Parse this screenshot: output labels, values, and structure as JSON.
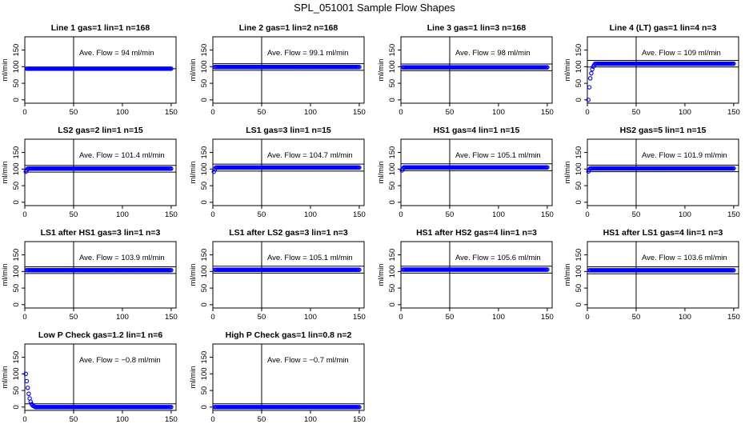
{
  "title": "SPL_051001  Sample Flow Shapes",
  "colors": {
    "points": "#0000ff",
    "axis": "#000000"
  },
  "chart_data": [
    {
      "type": "scatter",
      "title": "Line 1 gas=1 lin=1 n=168",
      "annotation": "Ave. Flow =  94  ml/min",
      "ylabel": "ml/min",
      "xlim": [
        0,
        155
      ],
      "ylim": [
        -10,
        190
      ],
      "xticks": [
        0,
        50,
        100,
        150
      ],
      "yticks": [
        0,
        50,
        100,
        150
      ],
      "vline": 50,
      "hlines": [
        94
      ],
      "ramp": [],
      "plateau": 94,
      "plateau_start": 2,
      "ramp_end": 2
    },
    {
      "type": "scatter",
      "title": "Line 2 gas=1 lin=2 n=168",
      "annotation": "Ave. Flow =  99.1  ml/min",
      "ylabel": "ml/min",
      "xlim": [
        0,
        155
      ],
      "ylim": [
        -10,
        190
      ],
      "xticks": [
        0,
        50,
        100,
        150
      ],
      "yticks": [
        0,
        50,
        100,
        150
      ],
      "vline": 50,
      "hlines": [
        89,
        109
      ],
      "ramp": [],
      "plateau": 99.1,
      "plateau_start": 2,
      "ramp_end": 2
    },
    {
      "type": "scatter",
      "title": "Line 3 gas=1 lin=3 n=168",
      "annotation": "Ave. Flow =  98  ml/min",
      "ylabel": "ml/min",
      "xlim": [
        0,
        155
      ],
      "ylim": [
        -10,
        190
      ],
      "xticks": [
        0,
        50,
        100,
        150
      ],
      "yticks": [
        0,
        50,
        100,
        150
      ],
      "vline": 50,
      "hlines": [
        88,
        108
      ],
      "ramp": [],
      "plateau": 98,
      "plateau_start": 2,
      "ramp_end": 2
    },
    {
      "type": "scatter",
      "title": "Line 4 (LT) gas=1 lin=4 n=3",
      "annotation": "Ave. Flow =  109  ml/min",
      "ylabel": "ml/min",
      "xlim": [
        0,
        155
      ],
      "ylim": [
        -10,
        190
      ],
      "xticks": [
        0,
        50,
        100,
        150
      ],
      "yticks": [
        0,
        50,
        100,
        150
      ],
      "vline": 50,
      "hlines": [
        99,
        119
      ],
      "ramp": [
        [
          1,
          0
        ],
        [
          2,
          38
        ],
        [
          3,
          65
        ],
        [
          4,
          80
        ],
        [
          5,
          92
        ],
        [
          6,
          100
        ],
        [
          7,
          105
        ]
      ],
      "plateau": 109,
      "plateau_start": 8,
      "ramp_end": 8
    },
    {
      "type": "scatter",
      "title": "LS2 gas=2 lin=1 n=15",
      "annotation": "Ave. Flow =  101.4  ml/min",
      "ylabel": "ml/min",
      "xlim": [
        0,
        155
      ],
      "ylim": [
        -10,
        190
      ],
      "xticks": [
        0,
        50,
        100,
        150
      ],
      "yticks": [
        0,
        50,
        100,
        150
      ],
      "vline": 50,
      "hlines": [
        91,
        111
      ],
      "ramp": [
        [
          1,
          92
        ],
        [
          2,
          97
        ]
      ],
      "plateau": 101.4,
      "plateau_start": 3,
      "ramp_end": 3
    },
    {
      "type": "scatter",
      "title": "LS1 gas=3 lin=1 n=15",
      "annotation": "Ave. Flow =  104.7  ml/min",
      "ylabel": "ml/min",
      "xlim": [
        0,
        155
      ],
      "ylim": [
        -10,
        190
      ],
      "xticks": [
        0,
        50,
        100,
        150
      ],
      "yticks": [
        0,
        50,
        100,
        150
      ],
      "vline": 50,
      "hlines": [
        94,
        115
      ],
      "ramp": [
        [
          1,
          92
        ],
        [
          2,
          99
        ]
      ],
      "plateau": 104.7,
      "plateau_start": 3,
      "ramp_end": 3
    },
    {
      "type": "scatter",
      "title": "HS1 gas=4 lin=1 n=15",
      "annotation": "Ave. Flow =  105.1  ml/min",
      "ylabel": "ml/min",
      "xlim": [
        0,
        155
      ],
      "ylim": [
        -10,
        190
      ],
      "xticks": [
        0,
        50,
        100,
        150
      ],
      "yticks": [
        0,
        50,
        100,
        150
      ],
      "vline": 50,
      "hlines": [
        95,
        116
      ],
      "ramp": [
        [
          1,
          96
        ],
        [
          2,
          101
        ]
      ],
      "plateau": 105.1,
      "plateau_start": 3,
      "ramp_end": 3
    },
    {
      "type": "scatter",
      "title": "HS2 gas=5 lin=1 n=15",
      "annotation": "Ave. Flow =  101.9  ml/min",
      "ylabel": "ml/min",
      "xlim": [
        0,
        155
      ],
      "ylim": [
        -10,
        190
      ],
      "xticks": [
        0,
        50,
        100,
        150
      ],
      "yticks": [
        0,
        50,
        100,
        150
      ],
      "vline": 50,
      "hlines": [
        92,
        112
      ],
      "ramp": [
        [
          1,
          93
        ],
        [
          2,
          98
        ]
      ],
      "plateau": 101.9,
      "plateau_start": 3,
      "ramp_end": 3
    },
    {
      "type": "scatter",
      "title": "LS1 after HS1 gas=3 lin=1 n=3",
      "annotation": "Ave. Flow =  103.9  ml/min",
      "ylabel": "ml/min",
      "xlim": [
        0,
        155
      ],
      "ylim": [
        -10,
        190
      ],
      "xticks": [
        0,
        50,
        100,
        150
      ],
      "yticks": [
        0,
        50,
        100,
        150
      ],
      "vline": 50,
      "hlines": [
        94,
        114
      ],
      "ramp": [],
      "plateau": 103.9,
      "plateau_start": 2,
      "ramp_end": 2
    },
    {
      "type": "scatter",
      "title": "LS1 after LS2 gas=3 lin=1 n=3",
      "annotation": "Ave. Flow =  105.1  ml/min",
      "ylabel": "ml/min",
      "xlim": [
        0,
        155
      ],
      "ylim": [
        -10,
        190
      ],
      "xticks": [
        0,
        50,
        100,
        150
      ],
      "yticks": [
        0,
        50,
        100,
        150
      ],
      "vline": 50,
      "hlines": [
        95,
        116
      ],
      "ramp": [],
      "plateau": 105.1,
      "plateau_start": 2,
      "ramp_end": 2
    },
    {
      "type": "scatter",
      "title": "HS1 after HS2 gas=4 lin=1 n=3",
      "annotation": "Ave. Flow =  105.6  ml/min",
      "ylabel": "ml/min",
      "xlim": [
        0,
        155
      ],
      "ylim": [
        -10,
        190
      ],
      "xticks": [
        0,
        50,
        100,
        150
      ],
      "yticks": [
        0,
        50,
        100,
        150
      ],
      "vline": 50,
      "hlines": [
        95,
        116
      ],
      "ramp": [],
      "plateau": 105.6,
      "plateau_start": 2,
      "ramp_end": 2
    },
    {
      "type": "scatter",
      "title": "HS1 after LS1 gas=4 lin=1 n=3",
      "annotation": "Ave. Flow =  103.6  ml/min",
      "ylabel": "ml/min",
      "xlim": [
        0,
        155
      ],
      "ylim": [
        -10,
        190
      ],
      "xticks": [
        0,
        50,
        100,
        150
      ],
      "yticks": [
        0,
        50,
        100,
        150
      ],
      "vline": 50,
      "hlines": [
        93,
        114
      ],
      "ramp": [],
      "plateau": 103.6,
      "plateau_start": 2,
      "ramp_end": 2
    },
    {
      "type": "scatter",
      "title": "Low P Check gas=1.2 lin=1 n=6",
      "annotation": "Ave. Flow =  −0.8  ml/min",
      "ylabel": "ml/min",
      "xlim": [
        0,
        155
      ],
      "ylim": [
        -10,
        190
      ],
      "xticks": [
        0,
        50,
        100,
        150
      ],
      "yticks": [
        0,
        50,
        100,
        150
      ],
      "vline": 50,
      "hlines": [
        -10,
        10
      ],
      "ramp": [
        [
          1,
          100
        ],
        [
          2,
          78
        ],
        [
          3,
          58
        ],
        [
          4,
          40
        ],
        [
          5,
          26
        ],
        [
          6,
          16
        ],
        [
          7,
          9
        ],
        [
          8,
          5
        ],
        [
          9,
          3
        ],
        [
          10,
          1.5
        ]
      ],
      "plateau": 0,
      "plateau_start": 11,
      "ramp_end": 11
    },
    {
      "type": "scatter",
      "title": "High P Check gas=1 lin=0.8 n=2",
      "annotation": "Ave. Flow =  −0.7  ml/min",
      "ylabel": "ml/min",
      "xlim": [
        0,
        155
      ],
      "ylim": [
        -10,
        190
      ],
      "xticks": [
        0,
        50,
        100,
        150
      ],
      "yticks": [
        0,
        50,
        100,
        150
      ],
      "vline": 50,
      "hlines": [
        -10,
        10
      ],
      "ramp": [],
      "plateau": 0,
      "plateau_start": 2,
      "ramp_end": 2
    }
  ]
}
